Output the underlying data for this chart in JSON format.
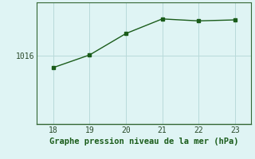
{
  "x": [
    18,
    19,
    20,
    21,
    22,
    23
  ],
  "y": [
    1014.8,
    1016.1,
    1018.3,
    1019.8,
    1019.6,
    1019.7
  ],
  "line_color": "#1a5c1a",
  "marker": "s",
  "marker_size": 2.5,
  "background_color": "#dff4f4",
  "grid_color": "#b8dada",
  "xlabel": "Graphe pression niveau de la mer (hPa)",
  "xlabel_color": "#1a5c1a",
  "xlabel_fontsize": 7.5,
  "xtick_labels": [
    "18",
    "19",
    "20",
    "21",
    "22",
    "23"
  ],
  "ytick_values": [
    1016
  ],
  "ylim": [
    1009.0,
    1021.5
  ],
  "xlim": [
    17.55,
    23.45
  ],
  "line_width": 1.0
}
